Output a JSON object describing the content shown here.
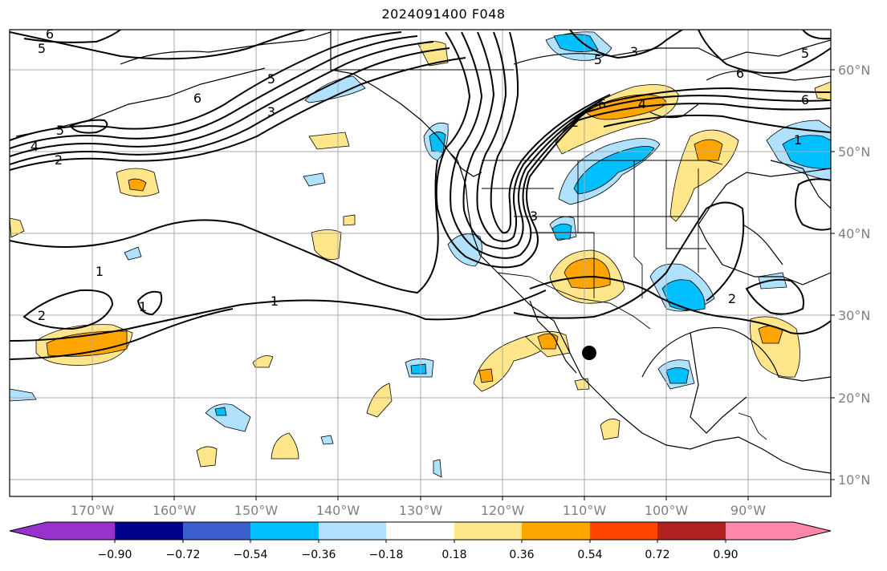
{
  "title": "2024091400 F048",
  "latitude_labels": [
    "60°N",
    "50°N",
    "40°N",
    "30°N",
    "20°N",
    "10°N"
  ],
  "longitude_labels": [
    "170°W",
    "160°W",
    "150°W",
    "140°W",
    "130°W",
    "120°W",
    "110°W",
    "100°W",
    "90°W"
  ],
  "colorbar": {
    "ticks": [
      "−0.90",
      "−0.72",
      "−0.54",
      "−0.36",
      "−0.18",
      "0.18",
      "0.36",
      "0.54",
      "0.72",
      "0.90"
    ],
    "colors": [
      "#9932cc",
      "#00008b",
      "#3a5fcd",
      "#00bfff",
      "#b0e2ff",
      "#ffffff",
      "#ffe68a",
      "#ffa500",
      "#ff4500",
      "#b22222",
      "#ff88aa"
    ]
  },
  "contour_labels": [
    "6",
    "5",
    "5",
    "6",
    "4",
    "2",
    "3",
    "5",
    "1",
    "1",
    "2",
    "1",
    "5",
    "3",
    "6",
    "4",
    "2",
    "6",
    "5",
    "6",
    "1",
    "3",
    "2"
  ],
  "colors": {
    "contour": "#000000",
    "grid": "#aaaaaa",
    "coast": "#000000"
  }
}
